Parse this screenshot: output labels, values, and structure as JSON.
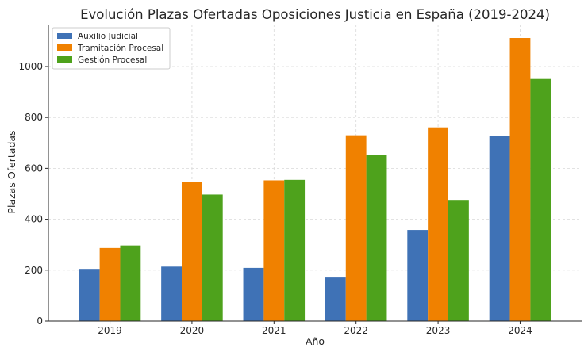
{
  "chart_data": {
    "type": "bar",
    "title": "Evolución Plazas Ofertadas Oposiciones Justicia en España (2019-2024)",
    "xlabel": "Año",
    "ylabel": "Plazas Ofertadas",
    "categories": [
      "2019",
      "2020",
      "2021",
      "2022",
      "2023",
      "2024"
    ],
    "series": [
      {
        "name": "Auxilio Judicial",
        "color": "#3f72b6",
        "values": [
          205,
          214,
          209,
          171,
          358,
          726
        ]
      },
      {
        "name": "Tramitación Procesal",
        "color": "#f08100",
        "values": [
          287,
          547,
          553,
          730,
          761,
          1112
        ]
      },
      {
        "name": "Gestión Procesal",
        "color": "#4ea21c",
        "values": [
          297,
          497,
          555,
          652,
          476,
          951
        ]
      }
    ],
    "ylim": [
      0,
      1165
    ],
    "yticks": [
      0,
      200,
      400,
      600,
      800,
      1000
    ],
    "grid": true,
    "legend_position": "top-left"
  }
}
